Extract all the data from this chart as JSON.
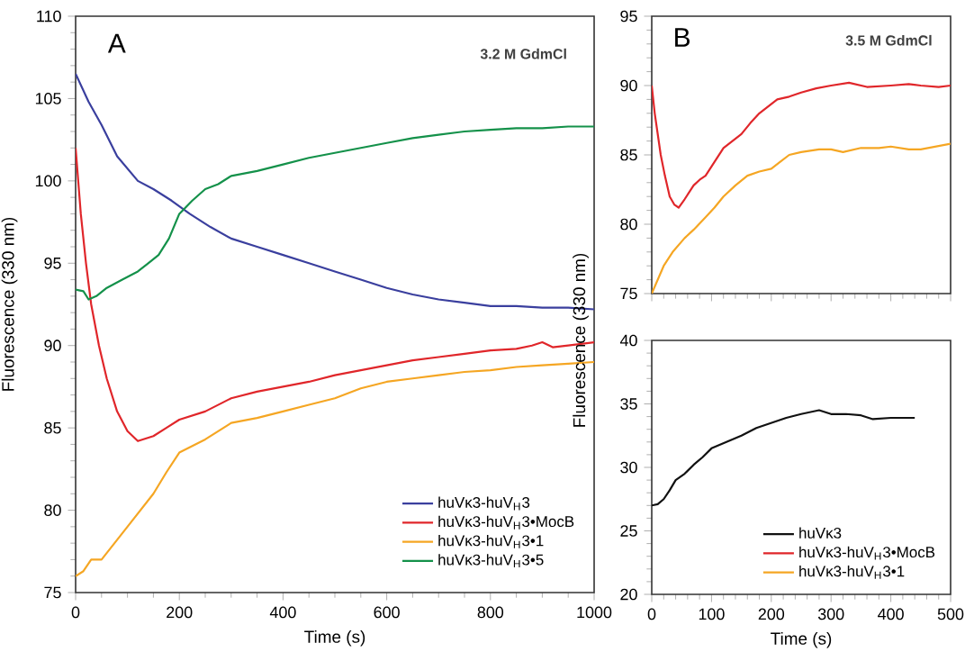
{
  "chart_data": [
    {
      "type": "line",
      "annotations": [
        "A",
        "3.2 M GdmCl"
      ],
      "xlabel": "Time (s)",
      "ylabel": "Fluorescence (330 nm)",
      "xlim": [
        0,
        1000
      ],
      "ylim": [
        75,
        110
      ],
      "xticks": [
        0,
        200,
        400,
        600,
        800,
        1000
      ],
      "yticks": [
        75,
        80,
        85,
        90,
        95,
        100,
        105,
        110
      ],
      "legend": "bottom right",
      "marker": "none",
      "line_style": "solid",
      "series": [
        {
          "name": "huVκ3-huV$_{H}$3",
          "color": "#3a3f9e",
          "x": [
            0,
            25,
            50,
            80,
            120,
            150,
            185,
            220,
            260,
            300,
            350,
            400,
            450,
            500,
            550,
            600,
            650,
            700,
            750,
            800,
            850,
            900,
            950,
            1000
          ],
          "values": [
            106.5,
            104.8,
            103.4,
            101.5,
            100,
            99.5,
            98.8,
            98,
            97.2,
            96.5,
            96,
            95.5,
            95,
            94.5,
            94,
            93.5,
            93.1,
            92.8,
            92.6,
            92.4,
            92.4,
            92.3,
            92.3,
            92.2
          ]
        },
        {
          "name": "huVκ3-huV$_{H}$3•MocB",
          "color": "#e0262a",
          "x": [
            0,
            10,
            20,
            30,
            45,
            60,
            80,
            100,
            120,
            150,
            175,
            200,
            250,
            300,
            350,
            400,
            450,
            500,
            550,
            600,
            650,
            700,
            750,
            800,
            850,
            880,
            900,
            920,
            950,
            1000
          ],
          "values": [
            102,
            98,
            95,
            92.5,
            90,
            88,
            86,
            84.8,
            84.2,
            84.5,
            85,
            85.5,
            86,
            86.8,
            87.2,
            87.5,
            87.8,
            88.2,
            88.5,
            88.8,
            89.1,
            89.3,
            89.5,
            89.7,
            89.8,
            90,
            90.2,
            89.9,
            90,
            90.2
          ]
        },
        {
          "name": "huVκ3-huV$_{H}$3•1",
          "color": "#f5a623",
          "x": [
            0,
            15,
            30,
            50,
            75,
            100,
            125,
            150,
            175,
            200,
            250,
            300,
            350,
            400,
            450,
            500,
            550,
            600,
            650,
            700,
            750,
            800,
            850,
            900,
            950,
            1000
          ],
          "values": [
            76,
            76.3,
            77,
            77,
            78,
            79,
            80,
            81,
            82.3,
            83.5,
            84.3,
            85.3,
            85.6,
            86,
            86.4,
            86.8,
            87.4,
            87.8,
            88,
            88.2,
            88.4,
            88.5,
            88.7,
            88.8,
            88.9,
            89
          ]
        },
        {
          "name": "huVκ3-huV$_{H}$3•5",
          "color": "#14914a",
          "x": [
            0,
            15,
            25,
            40,
            60,
            90,
            120,
            140,
            160,
            180,
            200,
            225,
            250,
            275,
            300,
            350,
            400,
            450,
            500,
            550,
            600,
            650,
            700,
            750,
            800,
            850,
            900,
            950,
            1000
          ],
          "values": [
            93.4,
            93.3,
            92.8,
            93,
            93.5,
            94,
            94.5,
            95,
            95.5,
            96.5,
            98,
            98.8,
            99.5,
            99.8,
            100.3,
            100.6,
            101,
            101.4,
            101.7,
            102,
            102.3,
            102.6,
            102.8,
            103,
            103.1,
            103.2,
            103.2,
            103.3,
            103.3
          ]
        }
      ]
    },
    {
      "type": "line",
      "annotations": [
        "B",
        "3.5 M GdmCl"
      ],
      "xlim": [
        0,
        500
      ],
      "ylim": [
        75,
        95
      ],
      "xticks": [
        0,
        100,
        200,
        300,
        400,
        500
      ],
      "yticks": [
        75,
        80,
        85,
        90,
        95
      ],
      "tick_labels": "y",
      "marker": "none",
      "line_style": "solid",
      "series": [
        {
          "name": "huVκ3-huV$_{H}$3•MocB",
          "color": "#e0262a",
          "x": [
            0,
            5,
            10,
            15,
            22,
            30,
            38,
            45,
            55,
            70,
            80,
            90,
            105,
            120,
            135,
            150,
            165,
            180,
            195,
            210,
            230,
            250,
            275,
            300,
            330,
            360,
            400,
            430,
            450,
            480,
            500
          ],
          "values": [
            90,
            88,
            86.5,
            85,
            83.5,
            82,
            81.4,
            81.2,
            81.8,
            82.8,
            83.2,
            83.5,
            84.5,
            85.5,
            86,
            86.5,
            87.3,
            88,
            88.5,
            89,
            89.2,
            89.5,
            89.8,
            90,
            90.2,
            89.9,
            90,
            90.1,
            90,
            89.9,
            90
          ]
        },
        {
          "name": "huVκ3-huV$_{H}$3•1",
          "color": "#f5a623",
          "x": [
            0,
            10,
            20,
            35,
            55,
            70,
            90,
            105,
            120,
            140,
            160,
            180,
            200,
            215,
            230,
            250,
            280,
            300,
            320,
            350,
            380,
            400,
            430,
            450,
            475,
            500
          ],
          "values": [
            75,
            76,
            77,
            78,
            79,
            79.6,
            80.5,
            81.2,
            82,
            82.8,
            83.5,
            83.8,
            84,
            84.5,
            85,
            85.2,
            85.4,
            85.4,
            85.2,
            85.5,
            85.5,
            85.6,
            85.4,
            85.4,
            85.6,
            85.8
          ]
        }
      ]
    },
    {
      "type": "line",
      "xlabel": "Time (s)",
      "ylabel": "Fluorescence (330 nm)",
      "xlim": [
        0,
        500
      ],
      "ylim": [
        20,
        40
      ],
      "xticks": [
        0,
        100,
        200,
        300,
        400,
        500
      ],
      "yticks": [
        20,
        25,
        30,
        35,
        40
      ],
      "legend": "bottom right",
      "marker": "none",
      "line_style": "solid",
      "series": [
        {
          "name": "huVκ3",
          "color": "#111111",
          "x": [
            0,
            10,
            20,
            30,
            40,
            55,
            70,
            85,
            100,
            125,
            150,
            175,
            200,
            225,
            250,
            280,
            300,
            325,
            350,
            370,
            400,
            420,
            440
          ],
          "values": [
            27,
            27.1,
            27.5,
            28.2,
            29,
            29.5,
            30.2,
            30.8,
            31.5,
            32,
            32.5,
            33.1,
            33.5,
            33.9,
            34.2,
            34.5,
            34.2,
            34.2,
            34.1,
            33.8,
            33.9,
            33.9,
            33.9
          ]
        }
      ]
    }
  ]
}
